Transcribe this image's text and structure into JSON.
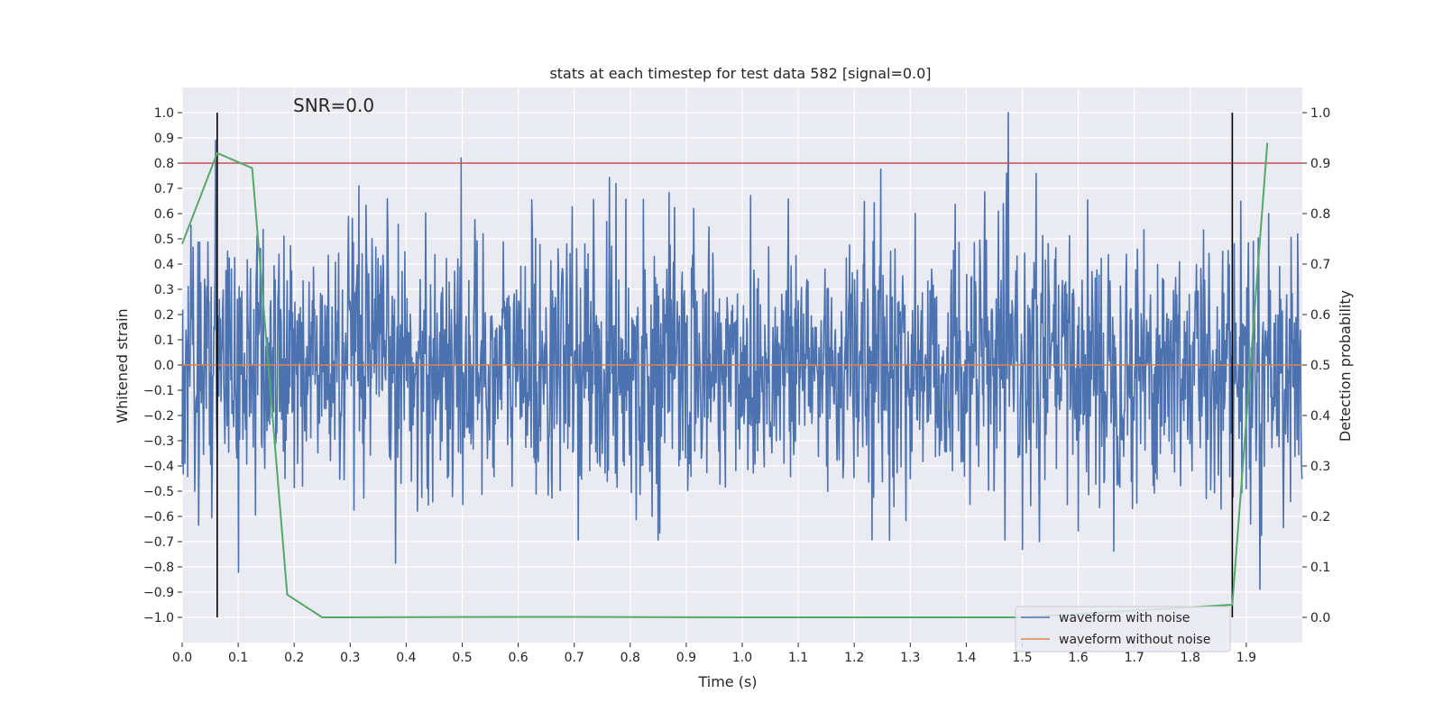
{
  "chart_data": {
    "type": "line",
    "title": "stats at each timestep for test data 582 [signal=0.0]",
    "xlabel": "Time (s)",
    "ylabel": "Whitened strain",
    "y2label": "Detection probability",
    "annotation": "SNR=0.0",
    "xlim": [
      0.0,
      2.0
    ],
    "ylim": [
      -1.1,
      1.1
    ],
    "y2lim": [
      -0.05,
      1.05
    ],
    "xticks": [
      0.0,
      0.1,
      0.2,
      0.3,
      0.4,
      0.5,
      0.6,
      0.7,
      0.8,
      0.9,
      1.0,
      1.1,
      1.2,
      1.3,
      1.4,
      1.5,
      1.6,
      1.7,
      1.8,
      1.9
    ],
    "xtick_labels": [
      "0.0",
      "0.1",
      "0.2",
      "0.3",
      "0.4",
      "0.5",
      "0.6",
      "0.7",
      "0.8",
      "0.9",
      "1.0",
      "1.1",
      "1.2",
      "1.3",
      "1.4",
      "1.5",
      "1.6",
      "1.7",
      "1.8",
      "1.9"
    ],
    "yticks": [
      1.0,
      0.9,
      0.8,
      0.7,
      0.6,
      0.5,
      0.4,
      0.3,
      0.2,
      0.1,
      0.0,
      -0.1,
      -0.2,
      -0.3,
      -0.4,
      -0.5,
      -0.6,
      -0.7,
      -0.8,
      -0.9,
      -1.0
    ],
    "ytick_labels": [
      "1.0",
      "0.9",
      "0.8",
      "0.7",
      "0.6",
      "0.5",
      "0.4",
      "0.3",
      "0.2",
      "0.1",
      "0.0",
      "−0.1",
      "−0.2",
      "−0.3",
      "−0.4",
      "−0.5",
      "−0.6",
      "−0.7",
      "−0.8",
      "−0.9",
      "−1.0"
    ],
    "y2ticks": [
      1.0,
      0.9,
      0.8,
      0.7,
      0.6,
      0.5,
      0.4,
      0.3,
      0.2,
      0.1,
      0.0
    ],
    "y2tick_labels": [
      "1.0",
      "0.9",
      "0.8",
      "0.7",
      "0.6",
      "0.5",
      "0.4",
      "0.3",
      "0.2",
      "0.1",
      "0.0"
    ],
    "grid": true,
    "legend_position": "bottom-right",
    "series": [
      {
        "name": "waveform with noise",
        "color": "#4c72b0",
        "axis": "left",
        "kind": "noise",
        "n_points": 2048,
        "amplitude_range": [
          -1.0,
          1.0
        ],
        "x_range": [
          0.0,
          1.9995
        ]
      },
      {
        "name": "waveform without noise",
        "color": "#dd8452",
        "axis": "left",
        "x": [
          0.0,
          1.9995
        ],
        "y": [
          0.0,
          0.0
        ]
      },
      {
        "name": "detection probability",
        "color": "#55a868",
        "axis": "right",
        "in_legend": false,
        "x": [
          0.0,
          0.0625,
          0.125,
          0.1875,
          0.25,
          0.625,
          1.0,
          1.5,
          1.875,
          1.9375
        ],
        "y": [
          0.74,
          0.92,
          0.89,
          0.045,
          0.0,
          0.001,
          0.0,
          0.0,
          0.025,
          0.94
        ]
      }
    ],
    "threshold": {
      "value": 0.8,
      "axis": "left",
      "color": "#c44e52"
    },
    "vlines": [
      {
        "x": 0.0625,
        "ymin": -1.0,
        "ymax": 1.0,
        "color": "#000000"
      },
      {
        "x": 1.875,
        "ymin": -1.0,
        "ymax": 1.0,
        "color": "#000000"
      }
    ]
  }
}
